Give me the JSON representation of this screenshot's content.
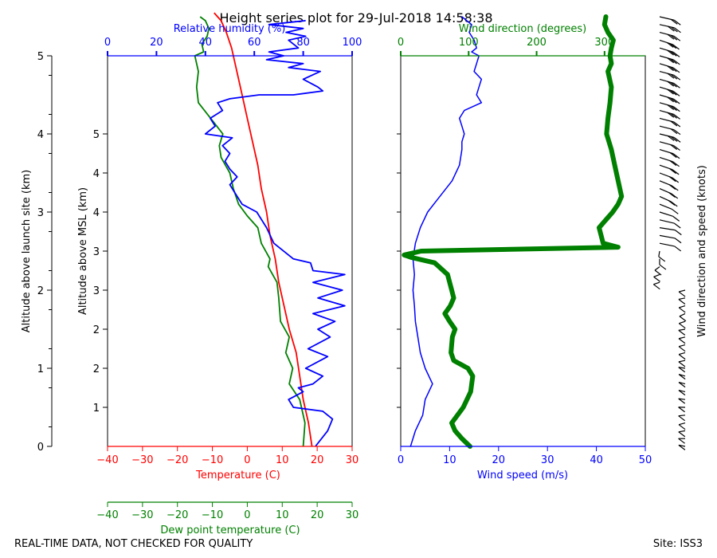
{
  "title": "Height series plot for 29-Jul-2018 14:58:38",
  "footer": {
    "left": "REAL-TIME DATA, NOT CHECKED FOR QUALITY",
    "right": "Site: ISS3"
  },
  "colors": {
    "temperature": "#ff0000",
    "dewpoint": "#008000",
    "rh": "#0000ff",
    "wind_speed": "#0000ff",
    "wind_dir": "#008000",
    "barbs": "#000000"
  },
  "chart_data": [
    {
      "type": "line",
      "name": "thermo-panel",
      "ylabel_outer": "Altitude above launch site (km)",
      "ylabel_inner": "Altitude above MSL (km)",
      "outer_ticks": [
        "0",
        "1",
        "2",
        "3",
        "4",
        "5"
      ],
      "outer_tick_values": [
        0,
        1,
        2,
        3,
        4,
        5
      ],
      "inner_ticks": [
        "1",
        "2",
        "2",
        "3",
        "3",
        "4",
        "4",
        "5"
      ],
      "inner_tick_values": [
        0.5,
        1.0,
        1.5,
        2.0,
        2.5,
        3.0,
        3.5,
        4.0
      ],
      "ylim": [
        0,
        5
      ],
      "temp_axis": {
        "label": "Temperature (C)",
        "ticks": [
          "−40",
          "−30",
          "−20",
          "−10",
          "0",
          "10",
          "20",
          "30"
        ],
        "tick_values": [
          -40,
          -30,
          -20,
          -10,
          0,
          10,
          20,
          30
        ],
        "range": [
          -40,
          30
        ]
      },
      "dewpoint_axis": {
        "label": "Dew point temperature (C)",
        "ticks": [
          "−40",
          "−30",
          "−20",
          "−10",
          "0",
          "10",
          "20",
          "30"
        ],
        "tick_values": [
          -40,
          -30,
          -20,
          -10,
          0,
          10,
          20,
          30
        ],
        "range": [
          -40,
          30
        ]
      },
      "rh_axis": {
        "label": "Relative humidity (%)",
        "ticks": [
          "0",
          "20",
          "40",
          "60",
          "80",
          "100"
        ],
        "tick_values": [
          0,
          20,
          40,
          60,
          80,
          100
        ],
        "range": [
          0,
          100
        ]
      },
      "series": [
        {
          "name": "Temperature",
          "axis": "temp",
          "x": [
            18.5,
            17.5,
            16.0,
            15.0,
            14.0,
            12.0,
            10.5,
            9.0,
            8.0,
            6.5,
            5.5,
            4.0,
            3.0,
            1.5,
            0.0,
            -1.5,
            -3.0,
            -4.5,
            -6.0,
            -7.0,
            -7.5,
            -8.5,
            -9.5
          ],
          "y": [
            0.0,
            0.3,
            0.6,
            0.9,
            1.2,
            1.5,
            1.8,
            2.1,
            2.4,
            2.7,
            3.0,
            3.3,
            3.6,
            3.9,
            4.2,
            4.5,
            4.8,
            5.1,
            5.3,
            5.4,
            5.45,
            5.5,
            5.55
          ]
        },
        {
          "name": "Dew point",
          "axis": "dewpoint",
          "x": [
            16.0,
            16.5,
            15.0,
            12.0,
            13.0,
            11.0,
            12.0,
            9.5,
            9.0,
            8.5,
            6.0,
            6.5,
            4.0,
            3.0,
            0.0,
            -2.5,
            -4.0,
            -5.0,
            -7.5,
            -8.0,
            -7.0,
            -10.5,
            -14.0,
            -14.5,
            -14.0,
            -15.0,
            -12.5,
            -13.0,
            -11.5,
            -11.0,
            -12.0,
            -13.5
          ],
          "y": [
            0.0,
            0.3,
            0.6,
            0.8,
            1.0,
            1.2,
            1.4,
            1.6,
            1.9,
            2.1,
            2.3,
            2.4,
            2.6,
            2.8,
            2.95,
            3.1,
            3.3,
            3.5,
            3.7,
            3.85,
            4.0,
            4.2,
            4.4,
            4.6,
            4.8,
            5.0,
            5.05,
            5.15,
            5.25,
            5.35,
            5.45,
            5.5
          ]
        },
        {
          "name": "Relative humidity",
          "axis": "rh",
          "x": [
            85,
            90,
            92,
            88,
            76,
            74,
            80,
            78,
            84,
            88,
            81,
            90,
            82,
            91,
            86,
            93,
            84,
            97,
            86,
            96,
            84,
            97,
            84,
            83,
            76,
            68,
            65,
            61,
            55,
            52,
            50,
            53,
            50,
            48,
            50,
            47,
            51,
            40,
            44,
            42,
            47,
            45,
            50,
            62,
            76,
            88,
            86,
            80,
            87,
            74,
            80,
            65,
            72,
            66,
            78,
            74,
            81,
            73,
            80,
            66,
            81
          ],
          "y": [
            0.0,
            0.2,
            0.35,
            0.45,
            0.5,
            0.6,
            0.7,
            0.75,
            0.8,
            0.9,
            1.0,
            1.15,
            1.25,
            1.4,
            1.5,
            1.6,
            1.7,
            1.8,
            1.9,
            2.0,
            2.1,
            2.2,
            2.25,
            2.35,
            2.4,
            2.6,
            2.8,
            3.0,
            3.1,
            3.25,
            3.35,
            3.45,
            3.55,
            3.65,
            3.75,
            3.85,
            3.95,
            4.0,
            4.1,
            4.2,
            4.3,
            4.4,
            4.45,
            4.5,
            4.5,
            4.55,
            4.6,
            4.7,
            4.8,
            4.85,
            4.9,
            4.95,
            5.0,
            5.05,
            5.1,
            5.2,
            5.25,
            5.3,
            5.35,
            5.4,
            5.45
          ]
        }
      ]
    },
    {
      "type": "line",
      "name": "wind-panel",
      "ylim": [
        0,
        5
      ],
      "speed_axis": {
        "label": "Wind speed (m/s)",
        "ticks": [
          "0",
          "10",
          "20",
          "30",
          "40",
          "50"
        ],
        "tick_values": [
          0,
          10,
          20,
          30,
          40,
          50
        ],
        "range": [
          0,
          50
        ]
      },
      "direction_axis": {
        "label": "Wind direction (degrees)",
        "ticks": [
          "0",
          "100",
          "200",
          "300"
        ],
        "tick_values": [
          0,
          100,
          200,
          300
        ],
        "range": [
          0,
          360
        ]
      },
      "barbs_label": "Wind direction and speed (knots)",
      "series": [
        {
          "name": "Wind speed",
          "axis": "speed",
          "x": [
            2.0,
            3.0,
            4.5,
            5.0,
            6.5,
            5.0,
            4.0,
            3.5,
            3.0,
            2.8,
            2.5,
            2.8,
            2.5,
            3.0,
            4.0,
            5.5,
            8.0,
            10.5,
            12.0,
            12.5,
            12.5,
            13.0,
            12.5,
            12.0,
            13.0,
            16.5,
            15.5,
            16.0,
            16.5,
            15.0,
            15.5,
            16.0,
            14.5,
            15.5,
            15.0,
            14.0,
            14.5,
            13.5,
            12.5
          ],
          "y": [
            0.0,
            0.2,
            0.4,
            0.6,
            0.8,
            1.0,
            1.2,
            1.4,
            1.6,
            1.8,
            2.0,
            2.2,
            2.4,
            2.6,
            2.8,
            3.0,
            3.2,
            3.4,
            3.6,
            3.8,
            3.9,
            4.0,
            4.1,
            4.2,
            4.3,
            4.4,
            4.5,
            4.6,
            4.7,
            4.8,
            4.9,
            5.0,
            5.05,
            5.1,
            5.2,
            5.3,
            5.4,
            5.45,
            5.5
          ]
        },
        {
          "name": "Wind direction",
          "axis": "direction",
          "x": [
            102,
            90,
            80,
            75,
            92,
            103,
            106,
            99,
            78,
            74,
            76,
            80,
            72,
            65,
            73,
            78,
            75,
            69,
            50,
            15,
            5,
            30,
            320,
            298,
            292,
            312,
            320,
            325,
            320,
            315,
            310,
            303,
            305,
            308,
            310,
            305,
            310,
            308,
            310,
            313,
            305,
            300,
            302
          ],
          "y": [
            0.0,
            0.1,
            0.2,
            0.3,
            0.5,
            0.7,
            0.9,
            1.0,
            1.1,
            1.2,
            1.4,
            1.5,
            1.6,
            1.7,
            1.8,
            1.9,
            2.0,
            2.2,
            2.35,
            2.42,
            2.45,
            2.5,
            2.55,
            2.6,
            2.8,
            3.0,
            3.1,
            3.2,
            3.4,
            3.6,
            3.8,
            4.0,
            4.2,
            4.4,
            4.6,
            4.8,
            4.9,
            5.0,
            5.1,
            5.2,
            5.3,
            5.4,
            5.5
          ]
        }
      ]
    }
  ]
}
